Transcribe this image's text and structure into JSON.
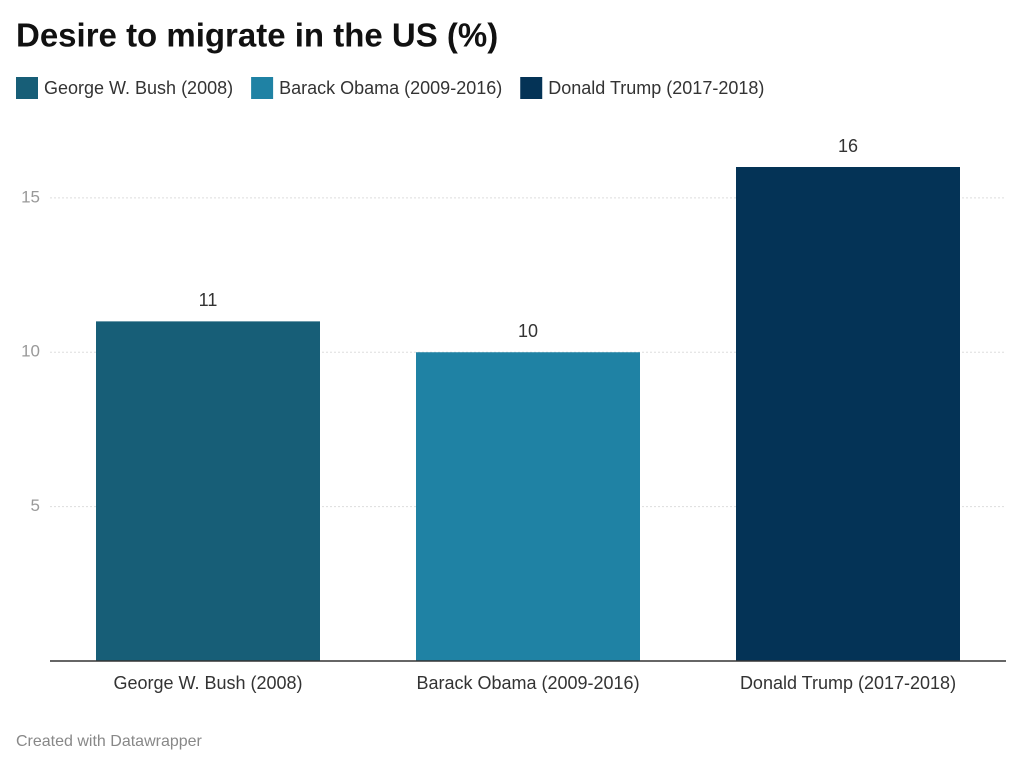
{
  "chart_data": {
    "type": "bar",
    "title": "Desire to migrate in the US (%)",
    "categories": [
      "George W. Bush (2008)",
      "Barack Obama (2009-2016)",
      "Donald Trump (2017-2018)"
    ],
    "values": [
      11,
      10,
      16
    ],
    "colors": [
      "#175e77",
      "#1f82a4",
      "#043356"
    ],
    "ylim": [
      0,
      16
    ],
    "yticks": [
      5,
      10,
      15
    ],
    "grid": true,
    "footer": "Created with Datawrapper"
  }
}
